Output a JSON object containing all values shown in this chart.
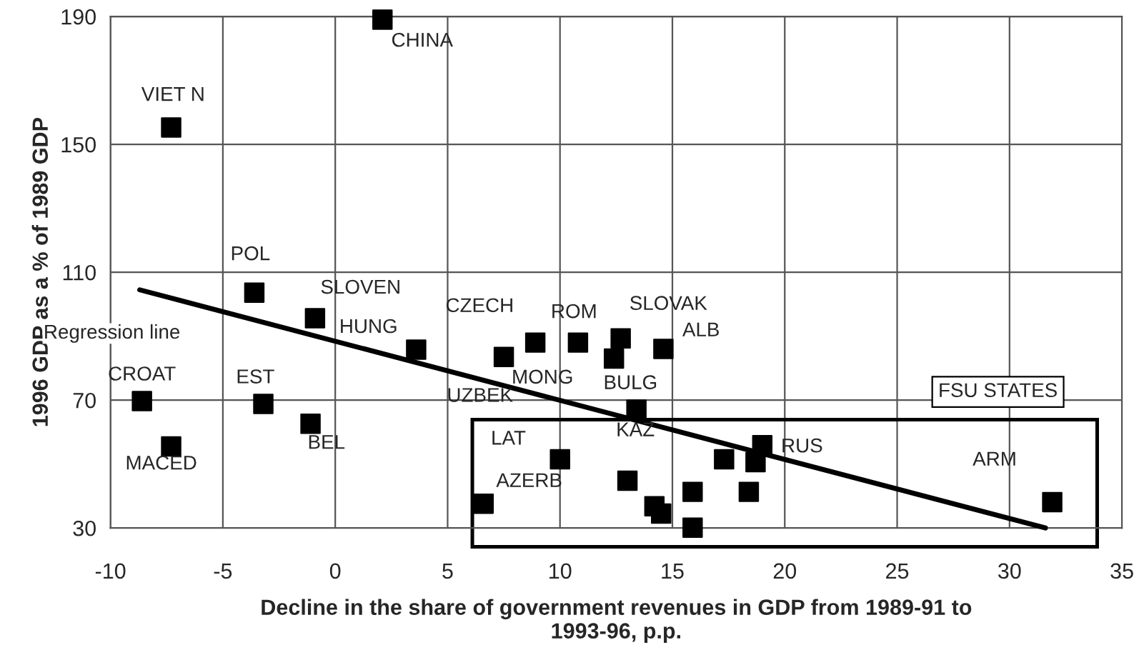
{
  "chart_data": {
    "type": "scatter",
    "xlabel": "Decline in the share of government revenues in GDP from 1989-91 to\n1993-96, p.p.",
    "ylabel": "1996 GDP as a % of 1989 GDP",
    "xlim": [
      -10,
      35
    ],
    "xticks": [
      -10,
      -5,
      0,
      5,
      10,
      15,
      20,
      25,
      30,
      35
    ],
    "ylim": [
      30,
      190
    ],
    "yticks": [
      30,
      70,
      110,
      150,
      190
    ],
    "grid": true,
    "legend": false,
    "marker": "square",
    "series": [
      {
        "color": "#000000",
        "x": [
          2.1,
          -7.3,
          -3.6,
          -0.9,
          3.6,
          -8.6,
          -3.2,
          -1.1,
          -7.3,
          7.5,
          8.9,
          10.8,
          12.7,
          12.4,
          14.6,
          13.4
        ],
        "values": [
          189,
          155.3,
          103.6,
          95.6,
          85.8,
          69.7,
          68.8,
          62.6,
          55.5,
          83.5,
          88,
          88,
          89.3,
          83,
          86,
          67
        ]
      },
      {
        "color": "#000000",
        "x": [
          10.0,
          6.6,
          13.0,
          14.2,
          14.5,
          15.9,
          15.9,
          17.3,
          18.7,
          19.0,
          18.4,
          31.9
        ],
        "values": [
          51.5,
          37.6,
          44.8,
          36.8,
          34.5,
          41.3,
          30.1,
          51.5,
          50.6,
          55.9,
          41.3,
          38.1
        ]
      },
      {
        "type": "line",
        "marker": "none",
        "color": "#000000",
        "x": [
          -8.7,
          31.6
        ],
        "values": [
          104.5,
          30
        ]
      }
    ],
    "annotations": [
      {
        "text": "CHINA",
        "x": 2.1,
        "y": 189
      },
      {
        "text": "VIET N",
        "x": -7.3,
        "y": 155.3
      },
      {
        "text": "POL",
        "x": -3.6,
        "y": 103.6
      },
      {
        "text": "SLOVEN",
        "x": -0.9,
        "y": 95.6
      },
      {
        "text": "HUNG",
        "x": 3.6,
        "y": 85.8
      },
      {
        "text": "CZECH",
        "x": 8.9,
        "y": 88
      },
      {
        "text": "ROM",
        "x": 10.8,
        "y": 88
      },
      {
        "text": "SLOVAK",
        "x": 12.7,
        "y": 89.3
      },
      {
        "text": "ALB",
        "x": 14.6,
        "y": 86
      },
      {
        "text": "UZBEK",
        "x": 7.5,
        "y": 83.5
      },
      {
        "text": "MONG",
        "x": 12.4,
        "y": 83
      },
      {
        "text": "BULG",
        "x": 13.4,
        "y": 67
      },
      {
        "text": "CROAT",
        "x": -8.6,
        "y": 69.7
      },
      {
        "text": "EST",
        "x": -3.2,
        "y": 68.8
      },
      {
        "text": "BEL",
        "x": -1.1,
        "y": 62.6
      },
      {
        "text": "MACED",
        "x": -7.3,
        "y": 55.5
      },
      {
        "text": "LAT",
        "x": 10.0,
        "y": 51.5
      },
      {
        "text": "KAZ",
        "x": 13.0,
        "y": 44.8
      },
      {
        "text": "AZERB",
        "x": 6.6,
        "y": 37.6
      },
      {
        "text": "RUS",
        "x": 19.0,
        "y": 55.9
      },
      {
        "text": "ARM",
        "x": 31.9,
        "y": 38.1
      },
      {
        "text": "Regression line",
        "x": -8.7,
        "y": 104.5
      },
      "FSU STATES"
    ]
  }
}
